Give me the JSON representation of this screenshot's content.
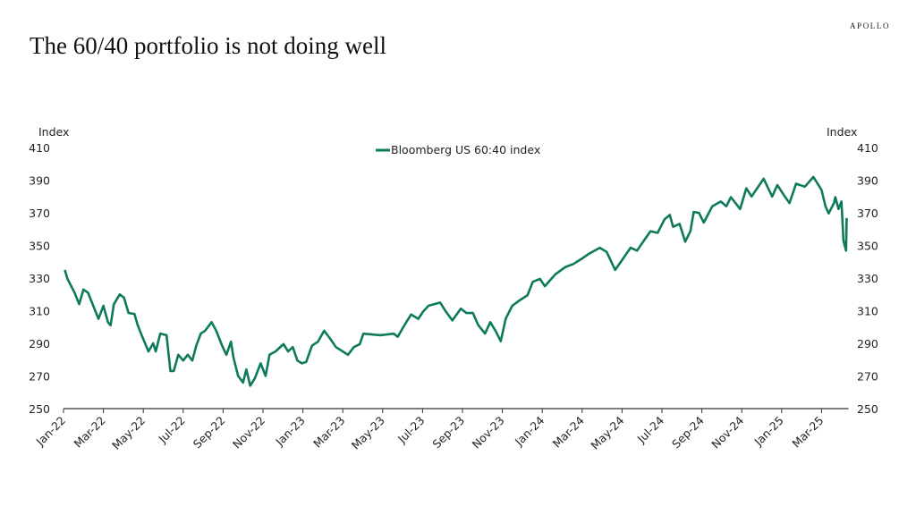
{
  "header": {
    "title": "The 60/40 portfolio is not doing well",
    "brand": "APOLLO"
  },
  "chart_data": {
    "type": "line",
    "title": "",
    "ylabel_left": "Index",
    "ylabel_right": "Index",
    "ylim": [
      250,
      410
    ],
    "yticks": [
      250,
      270,
      290,
      310,
      330,
      350,
      370,
      390,
      410
    ],
    "xticks": [
      "Jan-22",
      "Mar-22",
      "May-22",
      "Jul-22",
      "Sep-22",
      "Nov-22",
      "Jan-23",
      "Mar-23",
      "May-23",
      "Jul-23",
      "Sep-23",
      "Nov-23",
      "Jan-24",
      "Mar-24",
      "May-24",
      "Jul-24",
      "Sep-24",
      "Nov-24",
      "Jan-25",
      "Mar-25"
    ],
    "grid": false,
    "legend_position": "top-center",
    "color": "#0e7a5c",
    "series": [
      {
        "name": "Bloomberg US 60:40 index",
        "points": [
          [
            "2022-01-03",
            335
          ],
          [
            "2022-01-07",
            329.5
          ],
          [
            "2022-01-18",
            321
          ],
          [
            "2022-01-25",
            314
          ],
          [
            "2022-02-01",
            323
          ],
          [
            "2022-02-08",
            321
          ],
          [
            "2022-02-24",
            305
          ],
          [
            "2022-03-01",
            313
          ],
          [
            "2022-03-08",
            303
          ],
          [
            "2022-03-12",
            301
          ],
          [
            "2022-03-17",
            314
          ],
          [
            "2022-03-26",
            320
          ],
          [
            "2022-04-02",
            318
          ],
          [
            "2022-04-09",
            308.6
          ],
          [
            "2022-04-18",
            308
          ],
          [
            "2022-04-23",
            301
          ],
          [
            "2022-04-30",
            294
          ],
          [
            "2022-05-09",
            285
          ],
          [
            "2022-05-16",
            290
          ],
          [
            "2022-05-20",
            285
          ],
          [
            "2022-05-27",
            296
          ],
          [
            "2022-06-06",
            295
          ],
          [
            "2022-06-12",
            273
          ],
          [
            "2022-06-17",
            273
          ],
          [
            "2022-06-24",
            283
          ],
          [
            "2022-07-01",
            279.5
          ],
          [
            "2022-07-08",
            283
          ],
          [
            "2022-07-15",
            279.5
          ],
          [
            "2022-07-21",
            288.6
          ],
          [
            "2022-07-28",
            296
          ],
          [
            "2022-08-04",
            297.7
          ],
          [
            "2022-08-14",
            303
          ],
          [
            "2022-08-21",
            297.7
          ],
          [
            "2022-08-30",
            288.6
          ],
          [
            "2022-09-06",
            283
          ],
          [
            "2022-09-13",
            291
          ],
          [
            "2022-09-17",
            281
          ],
          [
            "2022-09-24",
            270
          ],
          [
            "2022-10-01",
            266
          ],
          [
            "2022-10-06",
            274
          ],
          [
            "2022-10-12",
            264
          ],
          [
            "2022-10-19",
            268.6
          ],
          [
            "2022-10-28",
            277.7
          ],
          [
            "2022-11-05",
            270
          ],
          [
            "2022-11-11",
            283
          ],
          [
            "2022-11-20",
            285
          ],
          [
            "2022-12-02",
            289.5
          ],
          [
            "2022-12-09",
            285
          ],
          [
            "2022-12-16",
            287.7
          ],
          [
            "2022-12-23",
            279.5
          ],
          [
            "2022-12-30",
            277.7
          ],
          [
            "2023-01-06",
            278.6
          ],
          [
            "2023-01-15",
            288.6
          ],
          [
            "2023-01-24",
            291
          ],
          [
            "2023-02-03",
            297.7
          ],
          [
            "2023-02-12",
            293
          ],
          [
            "2023-02-21",
            287.7
          ],
          [
            "2023-03-01",
            285
          ],
          [
            "2023-03-09",
            283
          ],
          [
            "2023-03-18",
            287.7
          ],
          [
            "2023-03-27",
            289.5
          ],
          [
            "2023-04-02",
            295.9
          ],
          [
            "2023-04-28",
            295
          ],
          [
            "2023-05-18",
            295.9
          ],
          [
            "2023-05-24",
            294
          ],
          [
            "2023-06-04",
            301.3
          ],
          [
            "2023-06-14",
            307.7
          ],
          [
            "2023-06-25",
            305
          ],
          [
            "2023-07-02",
            309.5
          ],
          [
            "2023-07-10",
            313
          ],
          [
            "2023-07-28",
            315
          ],
          [
            "2023-08-06",
            309.5
          ],
          [
            "2023-08-16",
            304
          ],
          [
            "2023-08-29",
            311.3
          ],
          [
            "2023-09-07",
            308.6
          ],
          [
            "2023-09-17",
            308.6
          ],
          [
            "2023-09-25",
            301.3
          ],
          [
            "2023-10-05",
            296
          ],
          [
            "2023-10-13",
            303
          ],
          [
            "2023-10-21",
            297.7
          ],
          [
            "2023-10-29",
            291.3
          ],
          [
            "2023-11-06",
            305
          ],
          [
            "2023-11-16",
            313
          ],
          [
            "2023-11-29",
            316.8
          ],
          [
            "2023-12-09",
            319.5
          ],
          [
            "2023-12-17",
            327.7
          ],
          [
            "2023-12-28",
            329.5
          ],
          [
            "2024-01-05",
            325
          ],
          [
            "2024-01-21",
            332.3
          ],
          [
            "2024-02-06",
            336.8
          ],
          [
            "2024-02-18",
            338.6
          ],
          [
            "2024-03-02",
            342.3
          ],
          [
            "2024-03-12",
            345
          ],
          [
            "2024-03-28",
            348.6
          ],
          [
            "2024-04-08",
            346
          ],
          [
            "2024-04-21",
            335
          ],
          [
            "2024-05-01",
            341
          ],
          [
            "2024-05-14",
            348.6
          ],
          [
            "2024-05-24",
            346.8
          ],
          [
            "2024-06-04",
            353
          ],
          [
            "2024-06-14",
            358.7
          ],
          [
            "2024-06-25",
            357.7
          ],
          [
            "2024-07-05",
            366
          ],
          [
            "2024-07-13",
            368.7
          ],
          [
            "2024-07-18",
            361.4
          ],
          [
            "2024-07-28",
            363.2
          ],
          [
            "2024-08-06",
            352.3
          ],
          [
            "2024-08-14",
            358.7
          ],
          [
            "2024-08-19",
            370.5
          ],
          [
            "2024-08-27",
            370
          ],
          [
            "2024-09-04",
            364
          ],
          [
            "2024-09-17",
            374
          ],
          [
            "2024-09-30",
            376.9
          ],
          [
            "2024-10-08",
            374
          ],
          [
            "2024-10-15",
            379.6
          ],
          [
            "2024-10-29",
            372.3
          ],
          [
            "2024-11-08",
            385
          ],
          [
            "2024-11-16",
            380
          ],
          [
            "2024-12-04",
            390.9
          ],
          [
            "2024-12-17",
            380
          ],
          [
            "2024-12-25",
            387
          ],
          [
            "2025-01-05",
            380.5
          ],
          [
            "2025-01-13",
            376
          ],
          [
            "2025-01-23",
            387.8
          ],
          [
            "2025-02-06",
            386
          ],
          [
            "2025-02-19",
            392
          ],
          [
            "2025-03-01",
            384
          ],
          [
            "2025-03-07",
            374
          ],
          [
            "2025-03-12",
            369.6
          ],
          [
            "2025-03-20",
            376
          ],
          [
            "2025-03-22",
            379.6
          ],
          [
            "2025-03-27",
            372.3
          ],
          [
            "2025-04-01",
            376.9
          ],
          [
            "2025-04-04",
            353
          ],
          [
            "2025-04-08",
            346.8
          ],
          [
            "2025-04-09",
            366.8
          ]
        ]
      }
    ]
  }
}
